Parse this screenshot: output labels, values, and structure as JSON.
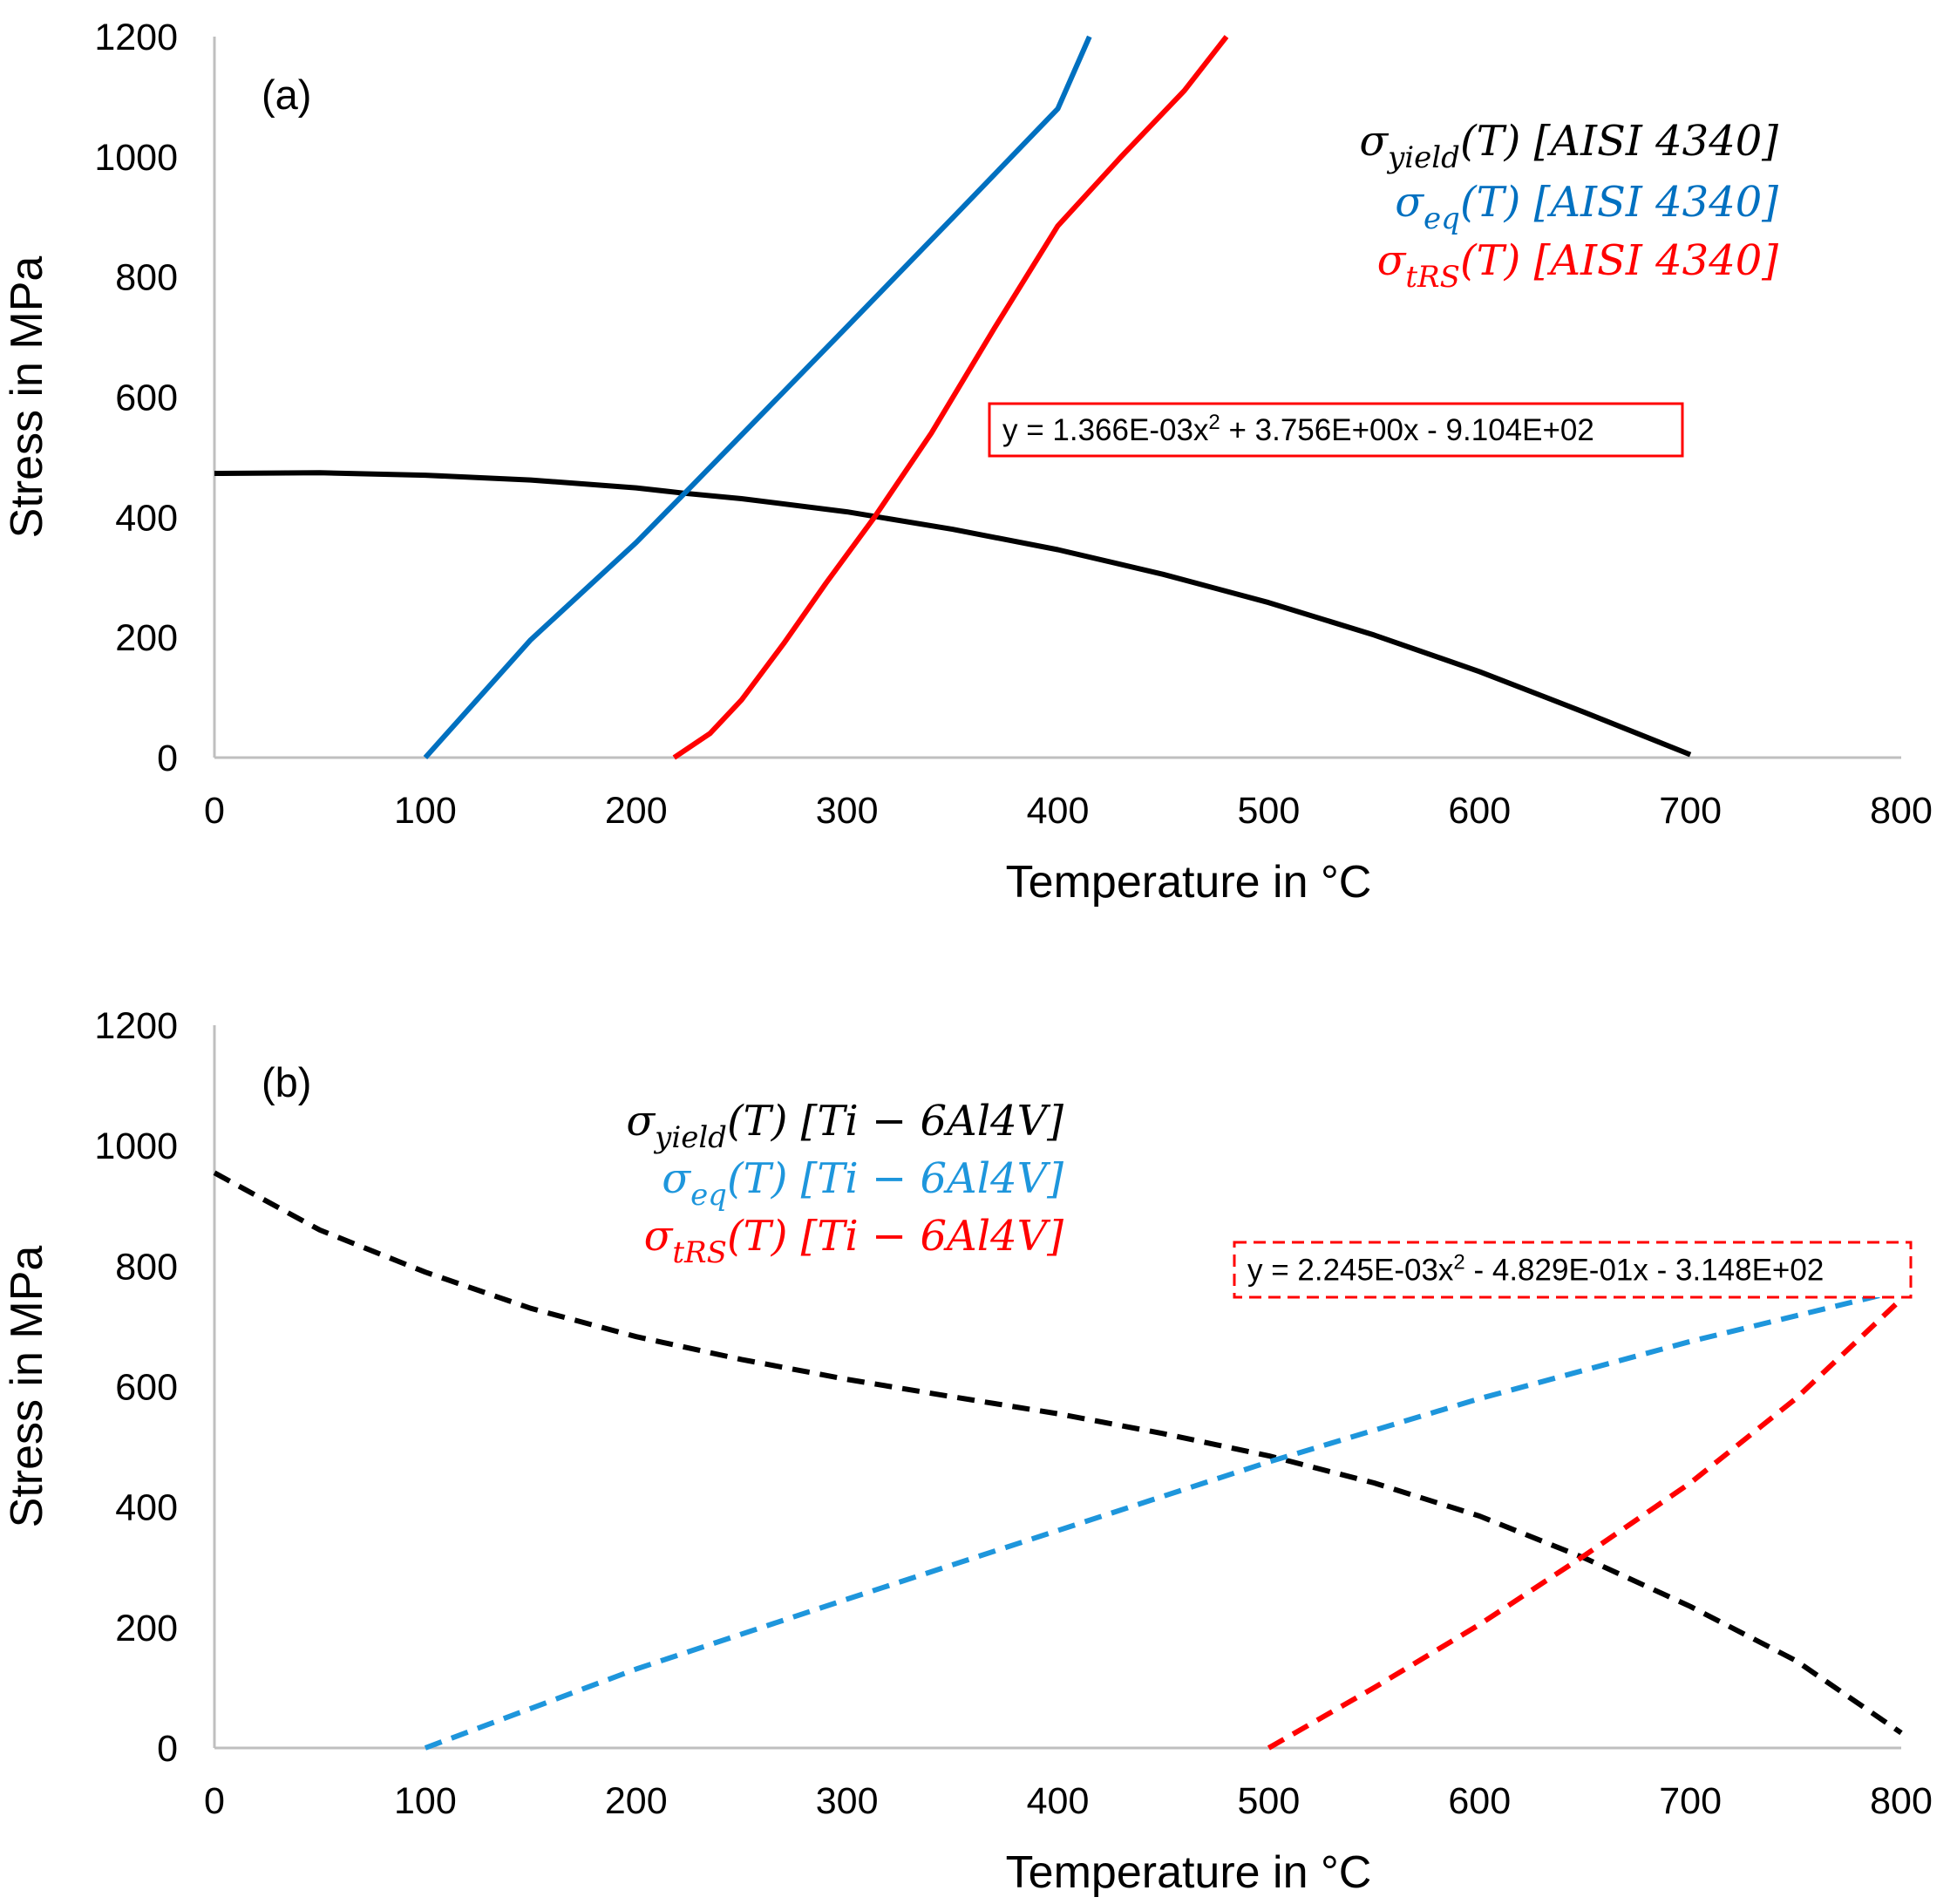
{
  "figure": {
    "colors": {
      "yield": "#000000",
      "equivalent": "#0070C0",
      "equivalent_b": "#1E96DC",
      "threshold": "#FF0000",
      "axis": "#BFBFBF"
    }
  },
  "chart_data": [
    {
      "id": "a",
      "type": "line",
      "panel_label": "(a)",
      "xlabel": "Temperature in °C",
      "ylabel": "Stress in MPa",
      "xlim": [
        0,
        800
      ],
      "ylim": [
        0,
        1200
      ],
      "x_ticks": [
        0,
        100,
        200,
        300,
        400,
        500,
        600,
        700,
        800
      ],
      "y_ticks": [
        0,
        200,
        400,
        600,
        800,
        1000,
        1200
      ],
      "x_tick_labels": [
        "0",
        "100",
        "200",
        "300",
        "400",
        "500",
        "600",
        "700",
        "800"
      ],
      "y_tick_labels": [
        "0",
        "200",
        "400",
        "600",
        "800",
        "1000",
        "1200"
      ],
      "line_style": "solid",
      "series": [
        {
          "name": "σyield(T) [AISI 4340]",
          "color_key": "yield",
          "x": [
            0,
            50,
            100,
            150,
            200,
            223,
            250,
            300,
            350,
            400,
            450,
            500,
            550,
            600,
            650,
            700
          ],
          "y": [
            473,
            474,
            470,
            462,
            449,
            440,
            431,
            409,
            380,
            346,
            305,
            258,
            204,
            143,
            75,
            5
          ]
        },
        {
          "name": "σeq(T) [AISI 4340]",
          "color_key": "equivalent",
          "x": [
            100,
            150,
            200,
            223,
            250,
            300,
            350,
            400,
            415
          ],
          "y": [
            0,
            196,
            358,
            440,
            537,
            717,
            898,
            1080,
            1200
          ]
        },
        {
          "name": "σtRS(T) [AISI 4340]",
          "color_key": "threshold",
          "x": [
            218,
            235,
            250,
            270,
            290,
            313,
            340,
            370,
            400,
            430,
            460,
            480
          ],
          "y": [
            0,
            40,
            96,
            190,
            290,
            400,
            540,
            715,
            885,
            1000,
            1110,
            1200
          ]
        }
      ],
      "legend": [
        {
          "base": "σ",
          "sub": "yield",
          "rest": "(T) [AISI 4340]",
          "color_key": "yield"
        },
        {
          "base": "σ",
          "sub": "eq",
          "rest": "(T) [AISI 4340]",
          "color_key": "equivalent"
        },
        {
          "base": "σ",
          "sub": "tRS",
          "rest": "(T) [AISI 4340]",
          "color_key": "threshold"
        }
      ],
      "trendline": {
        "prefix": "y = 1.366E-03x",
        "sup": "2",
        "suffix": "  + 3.756E+00x  - 9.104E+02",
        "border_style": "solid"
      }
    },
    {
      "id": "b",
      "type": "line",
      "panel_label": "(b)",
      "xlabel": "Temperature in °C",
      "ylabel": "Stress in MPa",
      "xlim": [
        0,
        800
      ],
      "ylim": [
        0,
        1200
      ],
      "x_ticks": [
        0,
        100,
        200,
        300,
        400,
        500,
        600,
        700,
        800
      ],
      "y_ticks": [
        0,
        200,
        400,
        600,
        800,
        1000,
        1200
      ],
      "x_tick_labels": [
        "0",
        "100",
        "200",
        "300",
        "400",
        "500",
        "600",
        "700",
        "800"
      ],
      "y_tick_labels": [
        "0",
        "200",
        "400",
        "600",
        "800",
        "1000",
        "1200"
      ],
      "line_style": "dashed",
      "series": [
        {
          "name": "σyield(T) [Ti−6Al4V]",
          "color_key": "yield",
          "x": [
            0,
            50,
            100,
            150,
            200,
            250,
            300,
            350,
            400,
            450,
            500,
            550,
            600,
            650,
            700,
            750,
            800
          ],
          "y": [
            955,
            860,
            790,
            730,
            683,
            645,
            612,
            583,
            555,
            522,
            485,
            440,
            385,
            315,
            235,
            145,
            25
          ]
        },
        {
          "name": "σeq(T) [Ti−6Al4V]",
          "color_key": "equivalent_b",
          "x": [
            100,
            200,
            300,
            400,
            500,
            600,
            700,
            800
          ],
          "y": [
            0,
            131,
            247,
            361,
            475,
            580,
            675,
            760
          ]
        },
        {
          "name": "σtRS(T) [Ti−6Al4V]",
          "color_key": "threshold",
          "x": [
            500,
            550,
            600,
            650,
            700,
            750,
            800
          ],
          "y": [
            0,
            100,
            205,
            320,
            440,
            580,
            745
          ]
        }
      ],
      "legend": [
        {
          "base": "σ",
          "sub": "yield",
          "rest": "(T) [Ti − 6Al4V]",
          "color_key": "yield"
        },
        {
          "base": "σ",
          "sub": "eq",
          "rest": "(T) [Ti − 6Al4V]",
          "color_key": "equivalent_b"
        },
        {
          "base": "σ",
          "sub": "tRS",
          "rest": "(T) [Ti − 6Al4V]",
          "color_key": "threshold"
        }
      ],
      "trendline": {
        "prefix": "y = 2.245E-03x",
        "sup": "2",
        "suffix": "  - 4.829E-01x  - 3.148E+02",
        "border_style": "dashed"
      }
    }
  ]
}
